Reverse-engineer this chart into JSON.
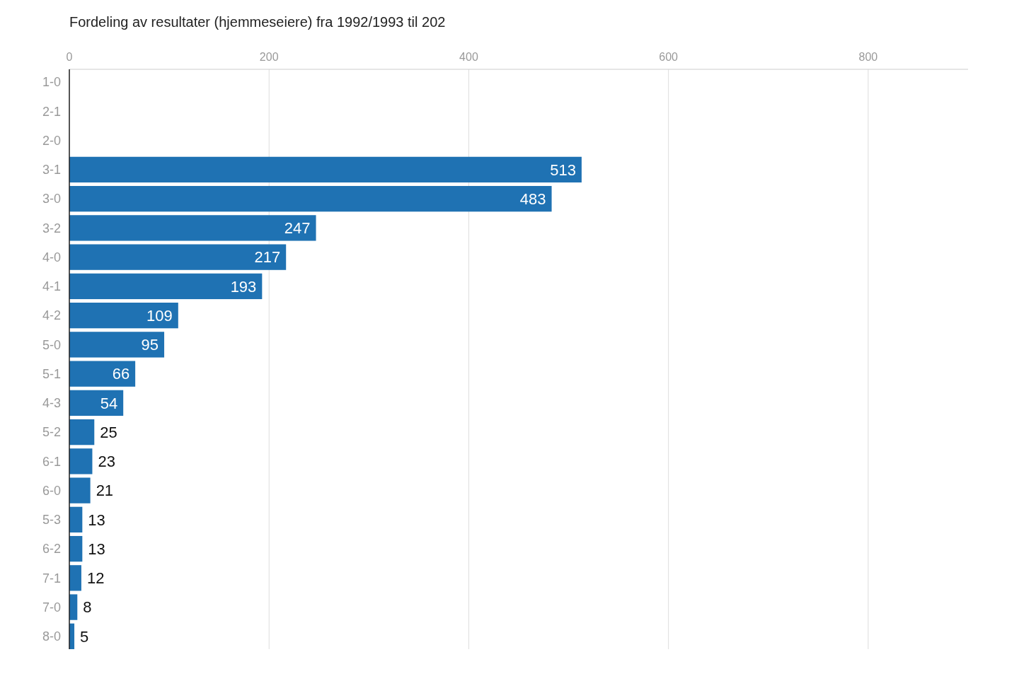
{
  "chart_data": {
    "type": "bar",
    "orientation": "horizontal",
    "title": "Fordeling av resultater (hjemmeseiere) fra 1992/1993 til 202",
    "categories": [
      "1-0",
      "2-1",
      "2-0",
      "3-1",
      "3-0",
      "3-2",
      "4-0",
      "4-1",
      "4-2",
      "5-0",
      "5-1",
      "4-3",
      "5-2",
      "6-1",
      "6-0",
      "5-3",
      "6-2",
      "7-1",
      "7-0",
      "8-0"
    ],
    "values": [
      null,
      null,
      null,
      513,
      483,
      247,
      217,
      193,
      109,
      95,
      66,
      54,
      25,
      23,
      21,
      13,
      13,
      12,
      8,
      5
    ],
    "color": "#1f72b3",
    "xlim": [
      0,
      900
    ],
    "xticks": [
      0,
      200,
      400,
      600,
      800
    ],
    "grid": "x",
    "data_labels": true
  }
}
